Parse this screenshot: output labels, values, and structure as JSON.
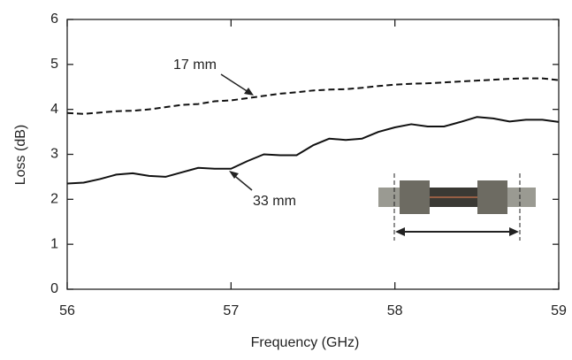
{
  "chart_data": {
    "type": "line",
    "x_label": "Frequency (GHz)",
    "y_label": "Loss (dB)",
    "x": [
      56,
      56.1,
      56.2,
      56.3,
      56.4,
      56.5,
      56.6,
      56.7,
      56.8,
      56.9,
      57,
      57.1,
      57.2,
      57.3,
      57.4,
      57.5,
      57.6,
      57.7,
      57.8,
      57.9,
      58,
      58.1,
      58.2,
      58.3,
      58.4,
      58.5,
      58.6,
      58.7,
      58.8,
      58.9,
      59
    ],
    "series": [
      {
        "name": "17 mm",
        "color": "#111111",
        "dashed": true,
        "values": [
          3.92,
          3.9,
          3.93,
          3.96,
          3.97,
          4.0,
          4.05,
          4.1,
          4.12,
          4.18,
          4.2,
          4.25,
          4.3,
          4.35,
          4.38,
          4.42,
          4.44,
          4.45,
          4.48,
          4.52,
          4.55,
          4.57,
          4.58,
          4.6,
          4.62,
          4.64,
          4.66,
          4.68,
          4.69,
          4.69,
          4.65
        ]
      },
      {
        "name": "33 mm",
        "color": "#111111",
        "dashed": false,
        "values": [
          2.35,
          2.37,
          2.45,
          2.55,
          2.58,
          2.52,
          2.5,
          2.6,
          2.7,
          2.68,
          2.68,
          2.85,
          3.0,
          2.98,
          2.98,
          3.2,
          3.35,
          3.32,
          3.35,
          3.5,
          3.6,
          3.67,
          3.62,
          3.62,
          3.72,
          3.83,
          3.8,
          3.73,
          3.77,
          3.77,
          3.72
        ]
      }
    ],
    "xlim": [
      56,
      59
    ],
    "xticks": [
      56,
      57,
      58,
      59
    ],
    "ylim": [
      0,
      6
    ],
    "yticks": [
      0,
      1,
      2,
      3,
      4,
      5,
      6
    ]
  }
}
